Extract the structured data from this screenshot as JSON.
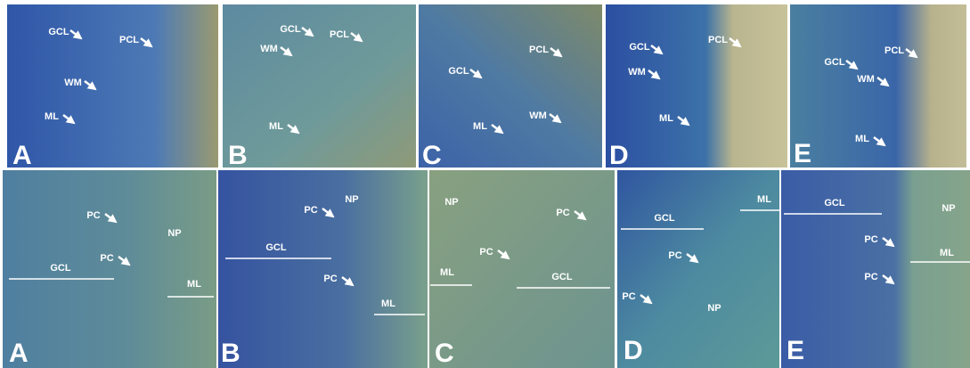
{
  "top_row": [
    {
      "letter": "A",
      "labels": [
        "GCL",
        "PCL",
        "WM",
        "ML"
      ]
    },
    {
      "letter": "B",
      "labels": [
        "GCL",
        "WM",
        "PCL",
        "ML"
      ]
    },
    {
      "letter": "C",
      "labels": [
        "GCL",
        "PCL",
        "ML",
        "WM"
      ]
    },
    {
      "letter": "D",
      "labels": [
        "GCL",
        "WM",
        "PCL",
        "ML"
      ]
    },
    {
      "letter": "E",
      "labels": [
        "GCL",
        "WM",
        "PCL",
        "ML"
      ]
    }
  ],
  "bottom_row": [
    {
      "letter": "A",
      "labels": [
        "PC",
        "PC",
        "NP",
        "GCL",
        "ML"
      ]
    },
    {
      "letter": "B",
      "labels": [
        "PC",
        "NP",
        "GCL",
        "PC",
        "ML"
      ]
    },
    {
      "letter": "C",
      "labels": [
        "NP",
        "PC",
        "PC",
        "ML",
        "GCL"
      ]
    },
    {
      "letter": "D",
      "labels": [
        "ML",
        "GCL",
        "PC",
        "PC",
        "NP"
      ]
    },
    {
      "letter": "E",
      "labels": [
        "GCL",
        "NP",
        "PC",
        "PC",
        "ML"
      ]
    }
  ]
}
